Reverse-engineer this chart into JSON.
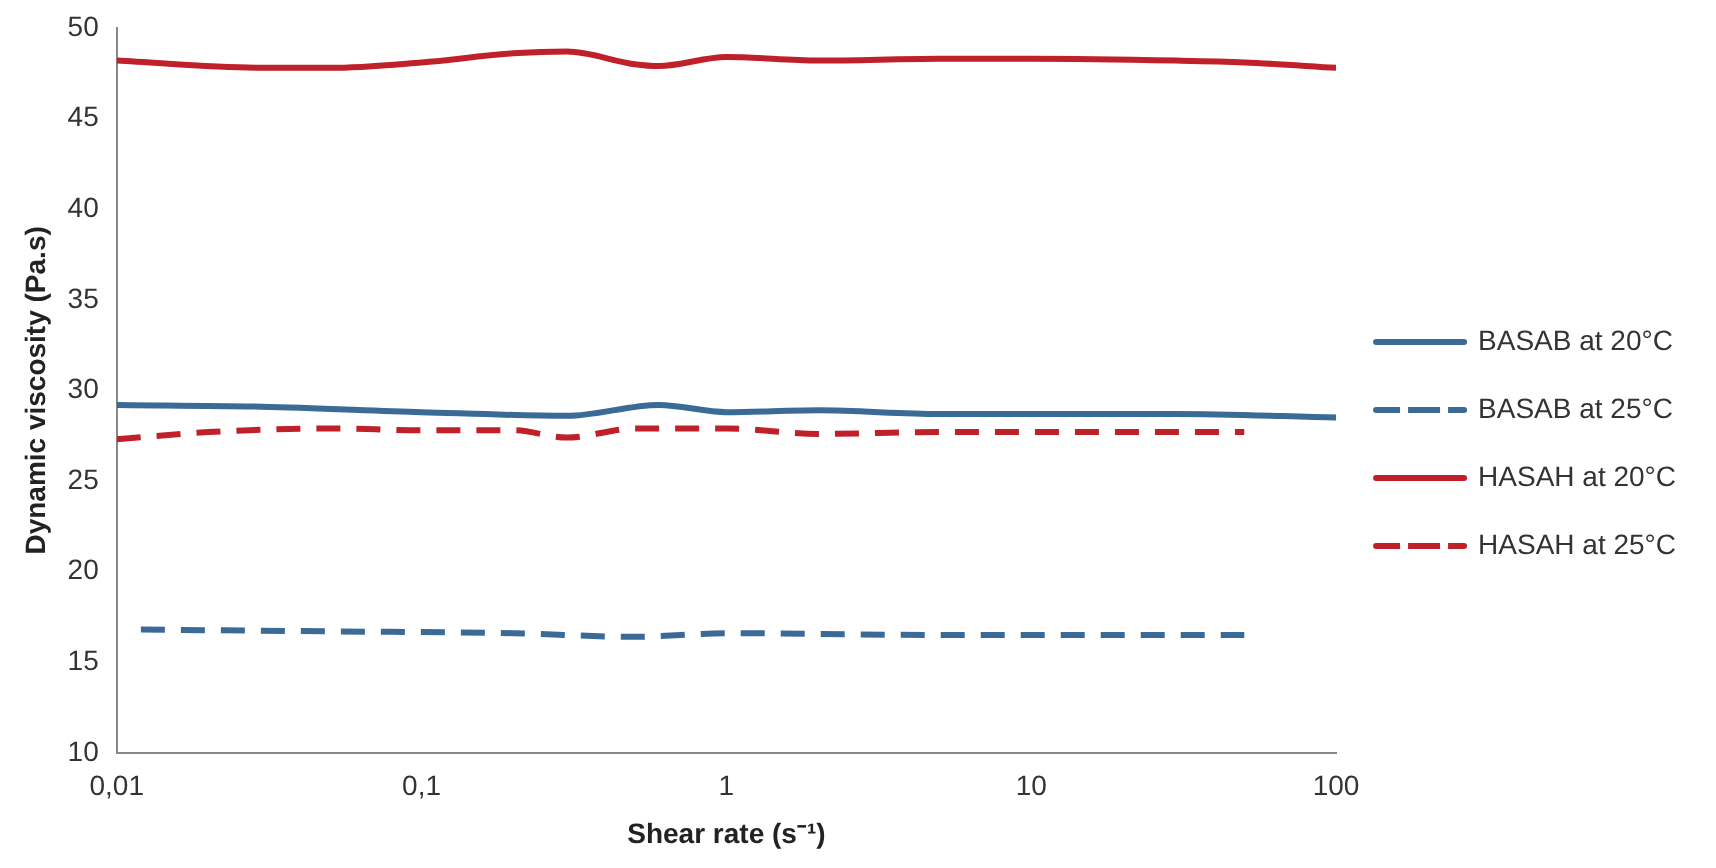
{
  "chart_data": {
    "type": "line",
    "xlabel": "Shear rate (s⁻¹)",
    "ylabel": "Dynamic viscosity (Pa.s)",
    "log": "x",
    "xlim": [
      0.01,
      100
    ],
    "xticks": [
      {
        "value": 0.01,
        "label": "0,01"
      },
      {
        "value": 0.1,
        "label": "0,1"
      },
      1,
      10,
      100
    ],
    "ylim": [
      10,
      50
    ],
    "yticks": [
      10,
      15,
      20,
      25,
      30,
      35,
      40,
      45,
      50
    ],
    "grid": false,
    "legend": "right",
    "marker": "none",
    "series": [
      {
        "name": "BASAB at 20°C",
        "color": "#3a6a96",
        "line_style": "solid",
        "x": [
          0.01,
          0.03,
          0.1,
          0.3,
          0.6,
          1,
          2,
          5,
          10,
          30,
          100
        ],
        "values": [
          29.2,
          29.1,
          28.8,
          28.6,
          29.2,
          28.8,
          28.9,
          28.7,
          28.7,
          28.7,
          28.5
        ]
      },
      {
        "name": "BASAB at 25°C",
        "color": "#3a6a96",
        "line_style": "dashed",
        "x": [
          0.012,
          0.05,
          0.2,
          0.5,
          1,
          5,
          50
        ],
        "values": [
          16.8,
          16.7,
          16.6,
          16.4,
          16.6,
          16.5,
          16.5
        ]
      },
      {
        "name": "HASAH at 20°C",
        "color": "#c0202a",
        "line_style": "solid",
        "x": [
          0.01,
          0.03,
          0.05,
          0.1,
          0.2,
          0.3,
          0.5,
          0.6,
          1,
          2,
          5,
          10,
          30,
          50,
          100
        ],
        "values": [
          48.2,
          47.8,
          47.8,
          48.1,
          48.6,
          48.7,
          48.0,
          47.9,
          48.4,
          48.2,
          48.3,
          48.3,
          48.2,
          48.1,
          47.8
        ]
      },
      {
        "name": "HASAH at 25°C",
        "color": "#c0202a",
        "line_style": "dashed",
        "x": [
          0.01,
          0.02,
          0.05,
          0.1,
          0.2,
          0.3,
          0.5,
          1,
          2,
          5,
          10,
          50
        ],
        "values": [
          27.3,
          27.7,
          27.9,
          27.8,
          27.8,
          27.4,
          27.9,
          27.9,
          27.6,
          27.7,
          27.7,
          27.7
        ]
      }
    ]
  }
}
